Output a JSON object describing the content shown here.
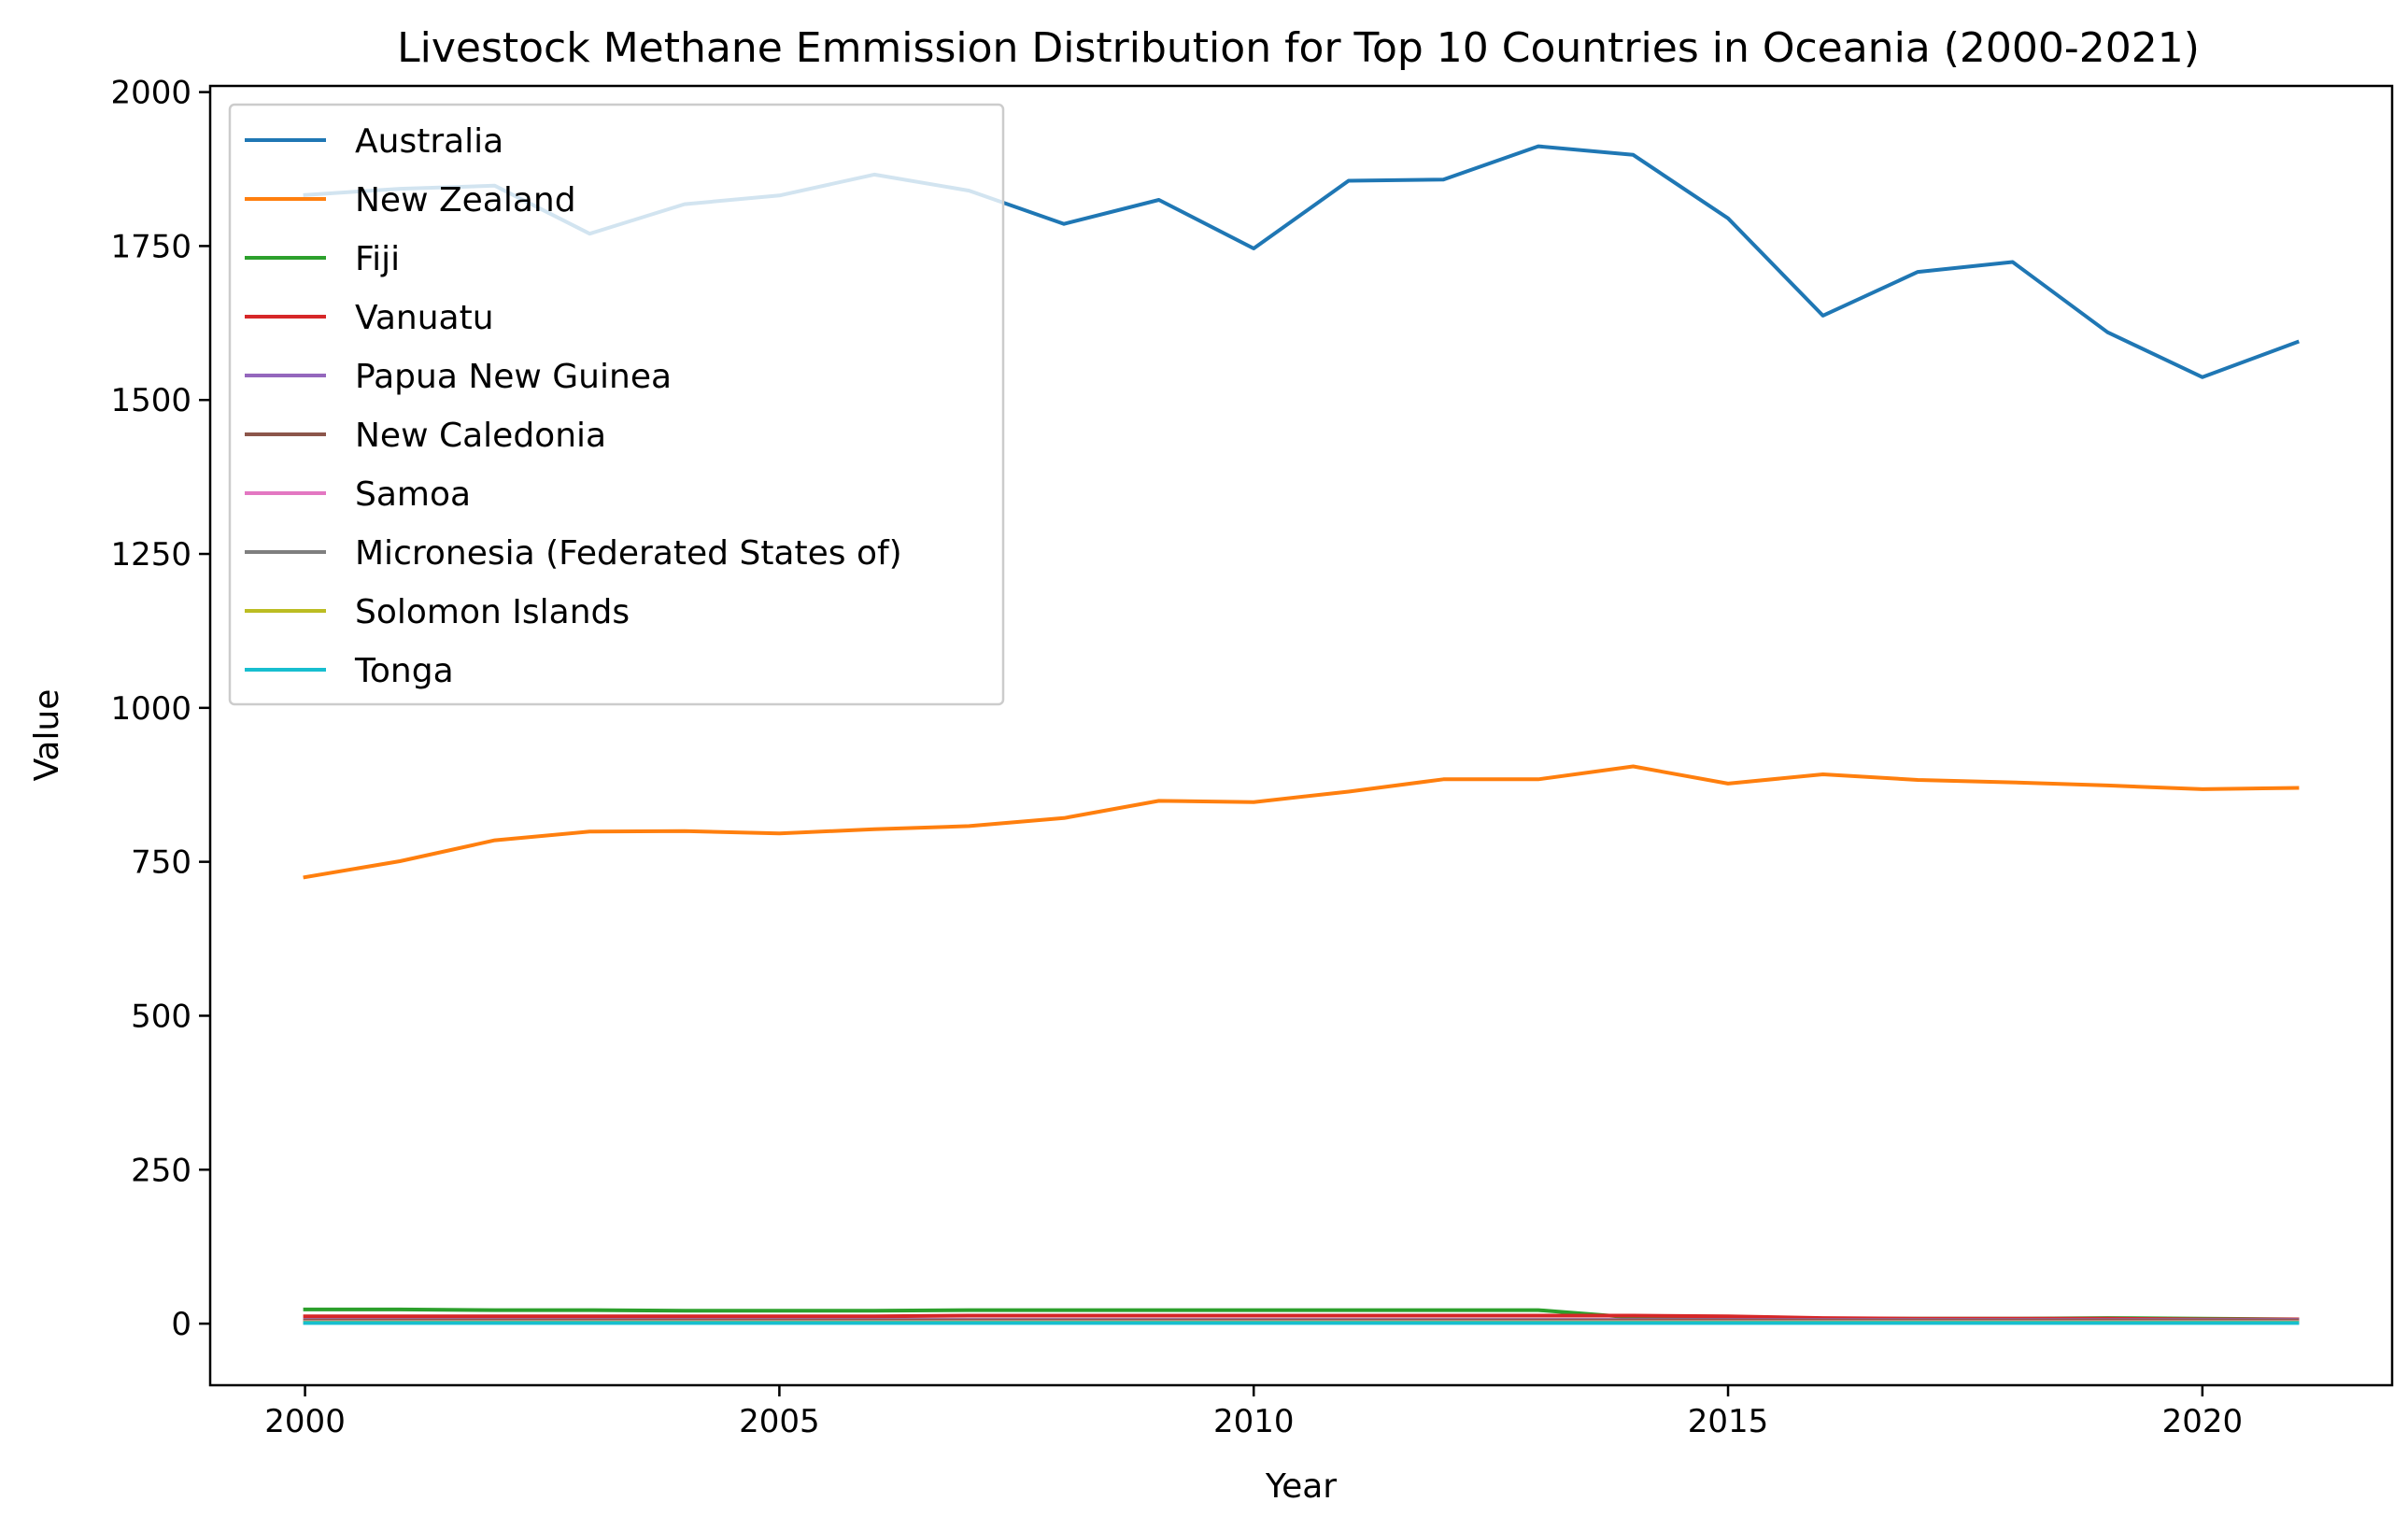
{
  "chart_data": {
    "type": "line",
    "title": "Livestock Methane Emmission Distribution for Top 10 Countries in Oceania (2000-2021)",
    "xlabel": "Year",
    "ylabel": "Value",
    "xlim": [
      1999,
      2022
    ],
    "ylim": [
      -100,
      2010
    ],
    "xticks": [
      2000,
      2005,
      2010,
      2015,
      2020
    ],
    "yticks": [
      0,
      250,
      500,
      750,
      1000,
      1250,
      1500,
      1750,
      2000
    ],
    "legend_position": "upper-left",
    "grid": false,
    "x": [
      2000,
      2001,
      2002,
      2003,
      2004,
      2005,
      2006,
      2007,
      2008,
      2009,
      2010,
      2011,
      2012,
      2013,
      2014,
      2015,
      2016,
      2017,
      2018,
      2019,
      2020,
      2021
    ],
    "series": [
      {
        "name": "Australia",
        "color": "#1f77b4",
        "values": [
          1833,
          1843,
          1848,
          1770,
          1818,
          1832,
          1866,
          1840,
          1786,
          1825,
          1746,
          1856,
          1858,
          1912,
          1898,
          1795,
          1637,
          1708,
          1724,
          1610,
          1537,
          1594
        ]
      },
      {
        "name": "New Zealand",
        "color": "#ff7f0e",
        "values": [
          725,
          751,
          785,
          799,
          800,
          796,
          803,
          808,
          821,
          849,
          847,
          864,
          884,
          884,
          905,
          877,
          892,
          883,
          879,
          874,
          868,
          870
        ]
      },
      {
        "name": "Fiji",
        "color": "#2ca02c",
        "values": [
          23,
          23,
          22,
          22,
          21,
          21,
          21,
          22,
          22,
          22,
          22,
          22,
          22,
          22,
          10,
          9,
          8,
          8,
          8,
          9,
          8,
          7
        ]
      },
      {
        "name": "Vanuatu",
        "color": "#d62728",
        "values": [
          12,
          12,
          12,
          12,
          12,
          12,
          12,
          13,
          13,
          13,
          13,
          13,
          13,
          13,
          13,
          12,
          9,
          8,
          8,
          8,
          7,
          7
        ]
      },
      {
        "name": "Papua New Guinea",
        "color": "#9467bd",
        "values": [
          6,
          6,
          6,
          6,
          6,
          6,
          6,
          6,
          6,
          6,
          6,
          6,
          6,
          6,
          6,
          6,
          6,
          6,
          6,
          6,
          6,
          6
        ]
      },
      {
        "name": "New Caledonia",
        "color": "#8c564b",
        "values": [
          5,
          5,
          5,
          5,
          5,
          5,
          5,
          5,
          5,
          5,
          5,
          5,
          5,
          5,
          5,
          5,
          5,
          5,
          5,
          5,
          5,
          5
        ]
      },
      {
        "name": "Samoa",
        "color": "#e377c2",
        "values": [
          3,
          3,
          3,
          3,
          3,
          3,
          3,
          3,
          3,
          3,
          3,
          3,
          3,
          3,
          3,
          3,
          3,
          3,
          3,
          3,
          3,
          3
        ]
      },
      {
        "name": "Micronesia (Federated States of)",
        "color": "#7f7f7f",
        "values": [
          2,
          2,
          2,
          2,
          2,
          2,
          2,
          2,
          2,
          2,
          2,
          2,
          2,
          2,
          2,
          2,
          2,
          2,
          2,
          2,
          2,
          2
        ]
      },
      {
        "name": "Solomon Islands",
        "color": "#bcbd22",
        "values": [
          2,
          2,
          2,
          2,
          2,
          2,
          2,
          2,
          2,
          2,
          2,
          2,
          2,
          2,
          2,
          2,
          2,
          2,
          2,
          2,
          2,
          2
        ]
      },
      {
        "name": "Tonga",
        "color": "#17becf",
        "values": [
          1,
          1,
          1,
          1,
          1,
          1,
          1,
          1,
          1,
          1,
          1,
          1,
          1,
          1,
          1,
          1,
          1,
          1,
          1,
          1,
          1,
          1
        ]
      }
    ]
  }
}
